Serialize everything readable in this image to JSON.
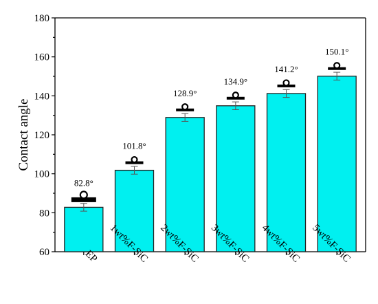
{
  "chart_data": {
    "type": "bar",
    "categories": [
      "EP",
      "1wt%F-SiC",
      "2wt%F-SiC",
      "3wt%F-SiC",
      "4wt%F-SiC",
      "5wt%F-SiC"
    ],
    "values": [
      82.8,
      101.8,
      128.9,
      134.9,
      141.2,
      150.1
    ],
    "errors": [
      2.0,
      2.0,
      2.0,
      2.0,
      2.0,
      2.0
    ],
    "data_labels": [
      "82.8°",
      "101.8°",
      "128.9°",
      "134.9°",
      "141.2°",
      "150.1°"
    ],
    "title": "",
    "xlabel": "",
    "ylabel": "Contact angle",
    "ylim": [
      60,
      180
    ],
    "yticks": [
      "60",
      "80",
      "100",
      "120",
      "140",
      "160",
      "180"
    ],
    "bar_color": "#00f0f0",
    "marker_color": "#000000",
    "grid": false
  }
}
